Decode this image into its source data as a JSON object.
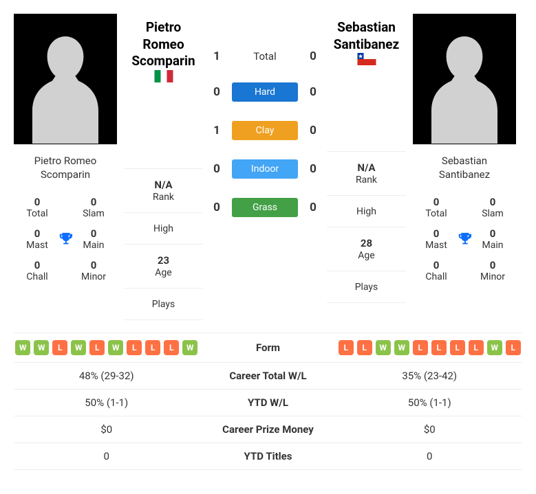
{
  "colors": {
    "win": "#8bc34a",
    "loss": "#ff7043",
    "hard": "#1976d2",
    "clay": "#f0a020",
    "indoor": "#42a5f5",
    "grass": "#43a047",
    "trophy": "#0d6efd",
    "silhouette": "#d1d1d1"
  },
  "p1": {
    "name": "Pietro Romeo Scomparin",
    "flag": "it",
    "rank": "N/A",
    "high": "",
    "age": "23",
    "plays": "",
    "titles": {
      "total": "0",
      "slam": "0",
      "mast": "0",
      "main": "0",
      "chall": "0",
      "minor": "0"
    }
  },
  "p2": {
    "name": "Sebastian Santibanez",
    "flag": "cl",
    "rank": "N/A",
    "high": "",
    "age": "28",
    "plays": "",
    "titles": {
      "total": "0",
      "slam": "0",
      "mast": "0",
      "main": "0",
      "chall": "0",
      "minor": "0"
    }
  },
  "labels": {
    "total": "Total",
    "slam": "Slam",
    "mast": "Mast",
    "main": "Main",
    "chall": "Chall",
    "minor": "Minor",
    "rank": "Rank",
    "high": "High",
    "age": "Age",
    "plays": "Plays"
  },
  "h2h": {
    "surfaces": [
      {
        "name": "Total",
        "p1": "1",
        "p2": "0",
        "color": ""
      },
      {
        "name": "Hard",
        "p1": "0",
        "p2": "0",
        "color": "#1976d2"
      },
      {
        "name": "Clay",
        "p1": "1",
        "p2": "0",
        "color": "#f0a020"
      },
      {
        "name": "Indoor",
        "p1": "0",
        "p2": "0",
        "color": "#42a5f5"
      },
      {
        "name": "Grass",
        "p1": "0",
        "p2": "0",
        "color": "#43a047"
      }
    ]
  },
  "comparison": [
    {
      "label": "Form",
      "p1_form": [
        "W",
        "W",
        "L",
        "W",
        "L",
        "W",
        "L",
        "L",
        "L",
        "W"
      ],
      "p2_form": [
        "L",
        "L",
        "W",
        "W",
        "L",
        "L",
        "L",
        "L",
        "W",
        "L"
      ]
    },
    {
      "label": "Career Total W/L",
      "p1": "48% (29-32)",
      "p2": "35% (23-42)"
    },
    {
      "label": "YTD W/L",
      "p1": "50% (1-1)",
      "p2": "50% (1-1)"
    },
    {
      "label": "Career Prize Money",
      "p1": "$0",
      "p2": "$0"
    },
    {
      "label": "YTD Titles",
      "p1": "0",
      "p2": "0"
    }
  ]
}
